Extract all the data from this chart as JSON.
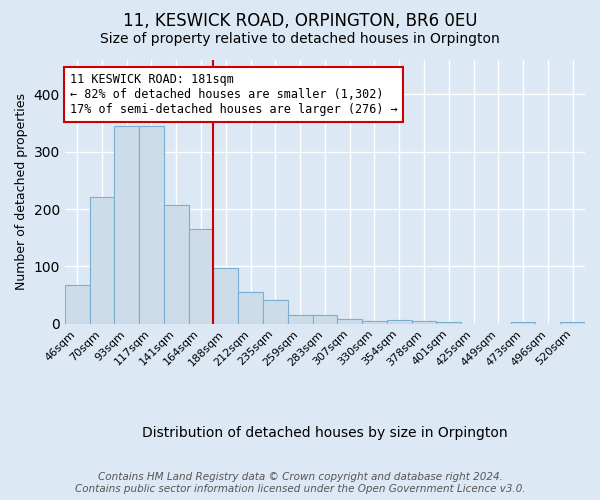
{
  "title": "11, KESWICK ROAD, ORPINGTON, BR6 0EU",
  "subtitle": "Size of property relative to detached houses in Orpington",
  "xlabel": "Distribution of detached houses by size in Orpington",
  "ylabel": "Number of detached properties",
  "bins": [
    "46sqm",
    "70sqm",
    "93sqm",
    "117sqm",
    "141sqm",
    "164sqm",
    "188sqm",
    "212sqm",
    "235sqm",
    "259sqm",
    "283sqm",
    "307sqm",
    "330sqm",
    "354sqm",
    "378sqm",
    "401sqm",
    "425sqm",
    "449sqm",
    "473sqm",
    "496sqm",
    "520sqm"
  ],
  "values": [
    67,
    222,
    345,
    345,
    208,
    165,
    97,
    55,
    41,
    16,
    15,
    8,
    5,
    7,
    5,
    3,
    0,
    0,
    3,
    0,
    3
  ],
  "bar_color": "#cddce9",
  "bar_edge_color": "#7aafd4",
  "vline_x": 5.5,
  "annotation_line1": "11 KESWICK ROAD: 181sqm",
  "annotation_line2": "← 82% of detached houses are smaller (1,302)",
  "annotation_line3": "17% of semi-detached houses are larger (276) →",
  "footer_line1": "Contains HM Land Registry data © Crown copyright and database right 2024.",
  "footer_line2": "Contains public sector information licensed under the Open Government Licence v3.0.",
  "ylim": [
    0,
    460
  ],
  "background_color": "#dce8f3",
  "grid_color": "#ffffff",
  "title_fontsize": 12,
  "subtitle_fontsize": 10,
  "ylabel_fontsize": 9,
  "xlabel_fontsize": 10,
  "tick_fontsize": 8,
  "footer_fontsize": 7.5,
  "annot_fontsize": 8.5
}
